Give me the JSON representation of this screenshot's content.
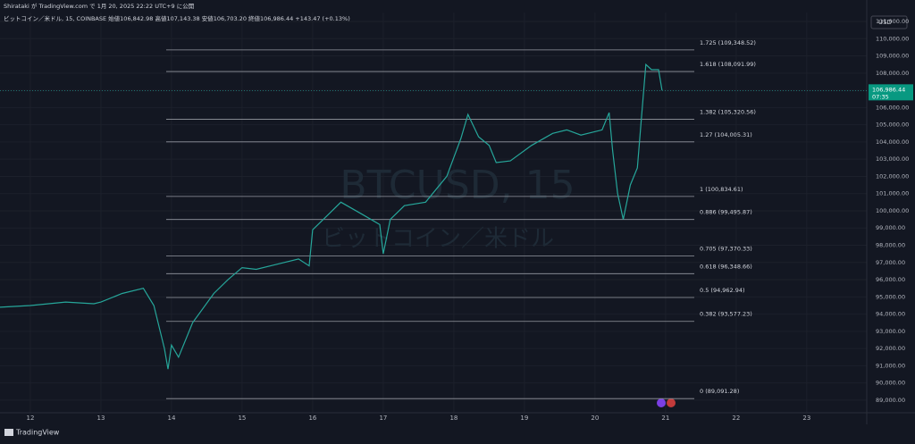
{
  "header": {
    "published": "Shirataki が TradingView.com で 1月 20, 2025 22:22 UTC+9 に公開",
    "symbol_line": "ビットコイン／米ドル, 15, COINBASE  始値106,842.98 高値107,143.38 安値106,703.20 終値106,986.44 +143.47 (+0.13%)",
    "currency": "USD"
  },
  "watermark": {
    "ticker": "BTCUSD, 15",
    "name": "ビットコイン／米ドル"
  },
  "footer": {
    "brand": "TradingView"
  },
  "chart_data": {
    "type": "line",
    "color": "#26a69a",
    "x": [
      11.57,
      12.0,
      12.5,
      12.9,
      13.0,
      13.3,
      13.6,
      13.75,
      13.9,
      13.95,
      14.0,
      14.1,
      14.3,
      14.6,
      14.8,
      15.0,
      15.2,
      15.5,
      15.8,
      15.95,
      16.0,
      16.2,
      16.4,
      16.7,
      16.95,
      17.0,
      17.1,
      17.3,
      17.6,
      17.9,
      18.1,
      18.2,
      18.35,
      18.5,
      18.6,
      18.8,
      19.1,
      19.4,
      19.6,
      19.8,
      20.1,
      20.2,
      20.25,
      20.32,
      20.4,
      20.5,
      20.6,
      20.67,
      20.72,
      20.8,
      20.9,
      20.95
    ],
    "values": [
      94400,
      94500,
      94700,
      94600,
      94700,
      95200,
      95500,
      94500,
      92000,
      90800,
      92200,
      91500,
      93500,
      95200,
      96000,
      96700,
      96600,
      96900,
      97200,
      96800,
      98900,
      99700,
      100500,
      99800,
      99200,
      97500,
      99500,
      100300,
      100500,
      102000,
      104200,
      105600,
      104300,
      103800,
      102800,
      102900,
      103800,
      104500,
      104700,
      104400,
      104700,
      105700,
      103500,
      101000,
      99500,
      101500,
      102500,
      106000,
      108500,
      108200,
      108200,
      107000
    ],
    "xlim": [
      11.57,
      23.85
    ],
    "xticks": [
      12,
      13,
      14,
      15,
      16,
      17,
      18,
      19,
      20,
      21,
      22,
      23
    ],
    "ylim": [
      88270,
      111520
    ],
    "yticks": [
      {
        "value": 89000,
        "label": "89,000.00"
      },
      {
        "value": 90000,
        "label": "90,000.00"
      },
      {
        "value": 91000,
        "label": "91,000.00"
      },
      {
        "value": 92000,
        "label": "92,000.00"
      },
      {
        "value": 93000,
        "label": "93,000.00"
      },
      {
        "value": 94000,
        "label": "94,000.00"
      },
      {
        "value": 95000,
        "label": "95,000.00"
      },
      {
        "value": 96000,
        "label": "96,000.00"
      },
      {
        "value": 97000,
        "label": "97,000.00"
      },
      {
        "value": 98000,
        "label": "98,000.00"
      },
      {
        "value": 99000,
        "label": "99,000.00"
      },
      {
        "value": 100000,
        "label": "100,000.00"
      },
      {
        "value": 101000,
        "label": "101,000.00"
      },
      {
        "value": 102000,
        "label": "102,000.00"
      },
      {
        "value": 103000,
        "label": "103,000.00"
      },
      {
        "value": 104000,
        "label": "104,000.00"
      },
      {
        "value": 105000,
        "label": "105,000.00"
      },
      {
        "value": 106000,
        "label": "106,000.00"
      },
      {
        "value": 107000,
        "label": "107,000.00"
      },
      {
        "value": 108000,
        "label": "108,000.00"
      },
      {
        "value": 109000,
        "label": "109,000.00"
      },
      {
        "value": 110000,
        "label": "110,000.00"
      },
      {
        "value": 111000,
        "label": "111,000.00"
      }
    ],
    "fib_levels": [
      {
        "value": 109348.52,
        "label": "1.725 (109,348.52)"
      },
      {
        "value": 108091.99,
        "label": "1.618 (108,091.99)"
      },
      {
        "value": 105320.56,
        "label": "1.382 (105,320.56)"
      },
      {
        "value": 104005.31,
        "label": "1.27 (104,005.31)"
      },
      {
        "value": 100834.61,
        "label": "1 (100,834.61)"
      },
      {
        "value": 99495.87,
        "label": "0.886 (99,495.87)"
      },
      {
        "value": 97370.33,
        "label": "0.705 (97,370.33)"
      },
      {
        "value": 96348.66,
        "label": "0.618 (96,348.66)"
      },
      {
        "value": 94962.94,
        "label": "0.5 (94,962.94)"
      },
      {
        "value": 93577.23,
        "label": "0.382 (93,577.23)"
      },
      {
        "value": 89091.28,
        "label": "0 (89,091.28)"
      }
    ],
    "last_price": {
      "value": 106986.44,
      "label": "106,986.44"
    },
    "countdown": "07:35"
  }
}
